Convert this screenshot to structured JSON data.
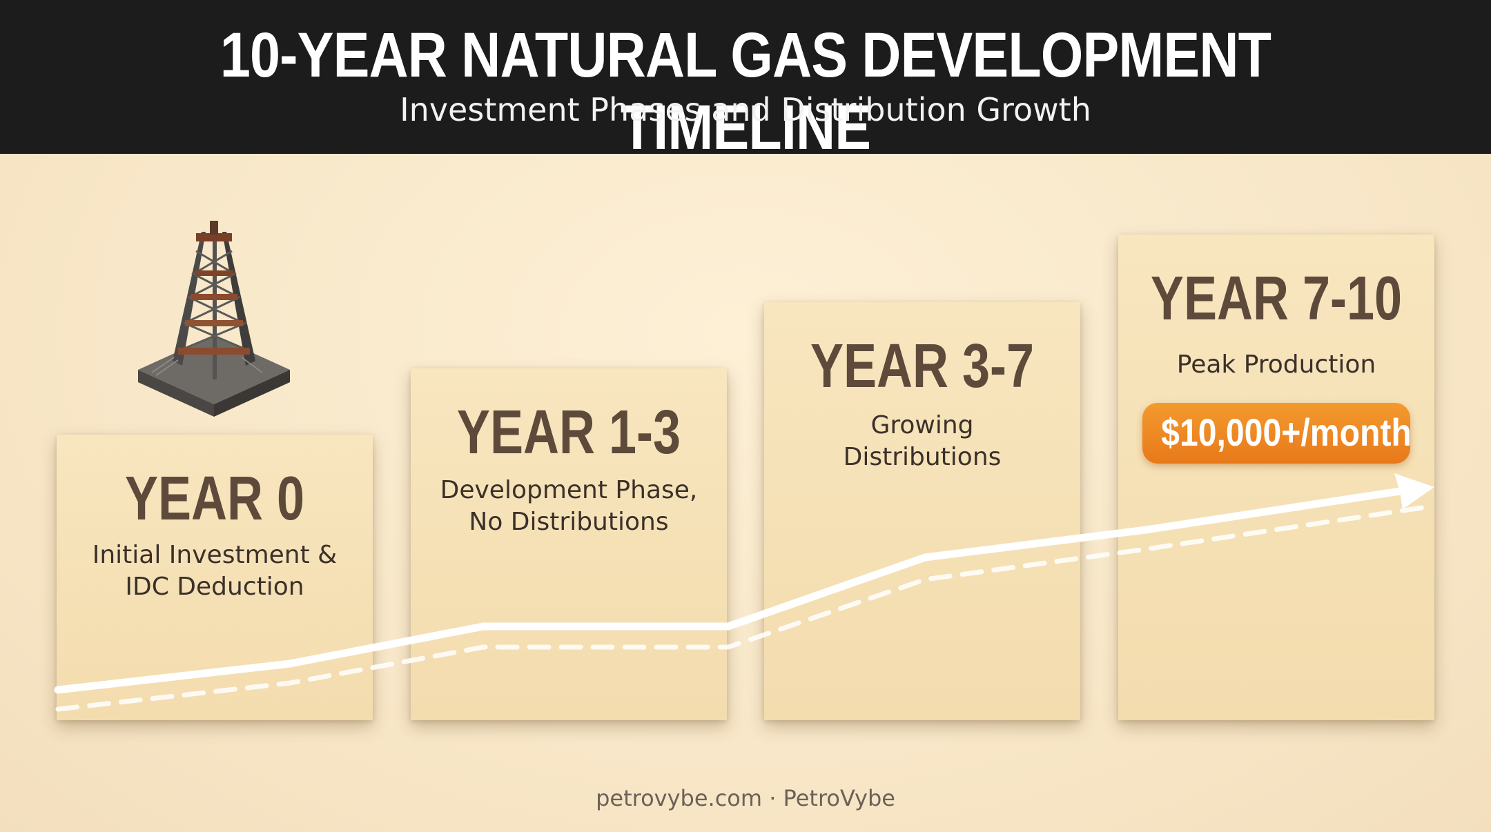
{
  "header": {
    "title": "10-Year Natural Gas Development Timeline",
    "subtitle": "Investment Phases and Distribution Growth"
  },
  "phases": [
    {
      "heading": "YEAR 0",
      "lines": [
        "Initial Investment &",
        "IDC Deduction"
      ]
    },
    {
      "heading": "YEAR 1-3",
      "lines": [
        "Development Phase,",
        "No Distributions"
      ]
    },
    {
      "heading": "YEAR 3-7",
      "lines": [
        "Growing",
        "Distributions"
      ]
    },
    {
      "heading": "YEAR 7-10",
      "lines": [
        "Peak Production"
      ]
    }
  ],
  "badge": {
    "label": "$10,000+/month",
    "color": "#ee8a24"
  },
  "footer": {
    "text": "petrovybe.com · PetroVybe"
  },
  "icons": {
    "rig": "oil-derrick-icon",
    "arrow": "growth-arrow"
  },
  "colors": {
    "header_bg": "#1c1c1c",
    "card_bg": "#f6e2b8",
    "heading": "#5e4a3a",
    "accent": "#ee8a24",
    "line": "#ffffff"
  }
}
